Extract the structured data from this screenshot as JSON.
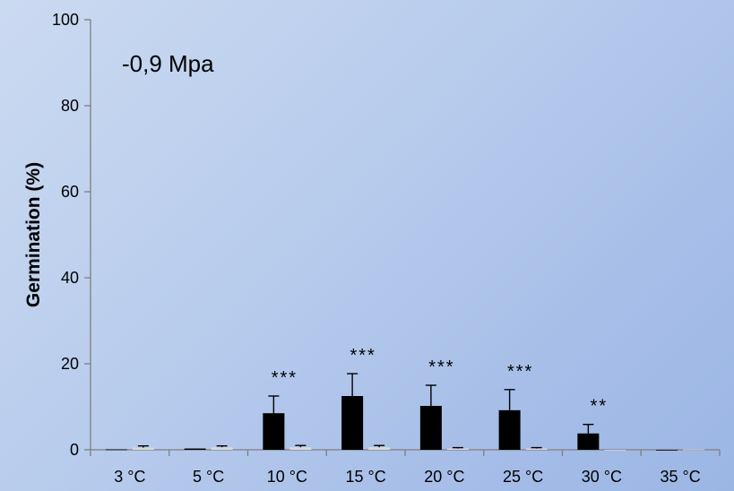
{
  "chart_data": {
    "type": "bar",
    "annotation": "-0,9 Mpa",
    "xlabel": "",
    "ylabel": "Germination (%)",
    "ylim": [
      0,
      100
    ],
    "yticks": [
      "0",
      "20",
      "40",
      "60",
      "80",
      "100"
    ],
    "categories": [
      "3 °C",
      "5 °C",
      "10 °C",
      "15 °C",
      "20 °C",
      "25 °C",
      "30 °C",
      "35 °C"
    ],
    "series": [
      {
        "color": "#000000",
        "values": [
          0.1,
          0.3,
          8.5,
          12.5,
          10.2,
          9.2,
          3.8,
          0
        ],
        "errors": [
          0,
          0,
          4.0,
          5.2,
          4.8,
          4.8,
          2.1,
          0
        ]
      },
      {
        "color": "#d9d9d9",
        "values": [
          0.5,
          0.6,
          0.6,
          0.6,
          0.3,
          0.3,
          0,
          0.1
        ],
        "errors": [
          0.4,
          0.3,
          0.4,
          0.4,
          0.2,
          0.2,
          0,
          0
        ]
      }
    ],
    "significance": [
      "",
      "",
      "***",
      "***",
      "***",
      "***",
      "**",
      ""
    ],
    "grid": false,
    "legend": "none"
  }
}
